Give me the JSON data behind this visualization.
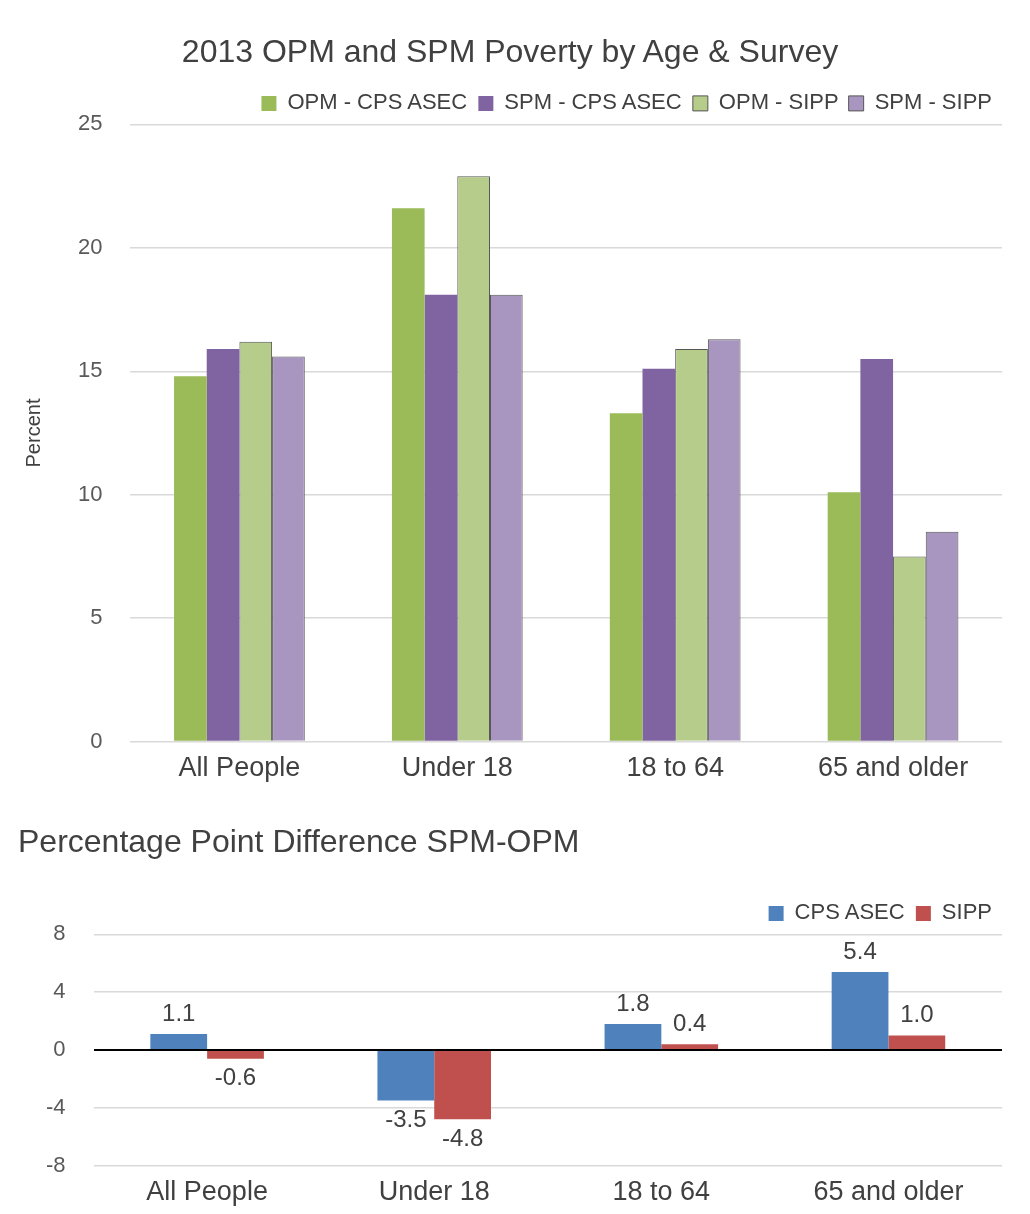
{
  "chart_data": [
    {
      "type": "bar",
      "title": "2013 OPM and SPM Poverty by Age & Survey",
      "ylabel": "Percent",
      "categories": [
        "All People",
        "Under 18",
        "18 to 64",
        "65 and older"
      ],
      "series": [
        {
          "name": "OPM - CPS ASEC",
          "color": "#9bbb59",
          "values": [
            14.8,
            21.6,
            13.3,
            10.1
          ]
        },
        {
          "name": "SPM - CPS ASEC",
          "color": "#8064a2",
          "values": [
            15.9,
            18.1,
            15.1,
            15.5
          ]
        },
        {
          "name": "OPM - SIPP",
          "color": "#b5cc8a",
          "values": [
            16.2,
            22.9,
            15.9,
            7.5
          ]
        },
        {
          "name": "SPM - SIPP",
          "color": "#a896c0",
          "values": [
            15.6,
            18.1,
            16.3,
            8.5
          ]
        }
      ],
      "ylim": [
        0,
        25
      ],
      "yticks": [
        0,
        5,
        10,
        15,
        20,
        25
      ],
      "grid": "y",
      "legend": "top right"
    },
    {
      "type": "bar",
      "title": "Percentage Point Difference SPM-OPM",
      "categories": [
        "All People",
        "Under 18",
        "18 to 64",
        "65 and older"
      ],
      "series": [
        {
          "name": "CPS ASEC",
          "color": "#4f81bd",
          "values": [
            1.1,
            -3.5,
            1.8,
            5.4
          ],
          "value_labels": [
            "1.1",
            "-3.5",
            "1.8",
            "5.4"
          ]
        },
        {
          "name": "SIPP",
          "color": "#c0504d",
          "values": [
            -0.6,
            -4.8,
            0.4,
            1.0
          ],
          "value_labels": [
            "-0.6",
            "-4.8",
            "0.4",
            "1.0"
          ]
        }
      ],
      "ylim": [
        -8,
        8
      ],
      "yticks": [
        -8,
        -4,
        0,
        4,
        8
      ],
      "grid": "y",
      "legend": "top right"
    }
  ]
}
